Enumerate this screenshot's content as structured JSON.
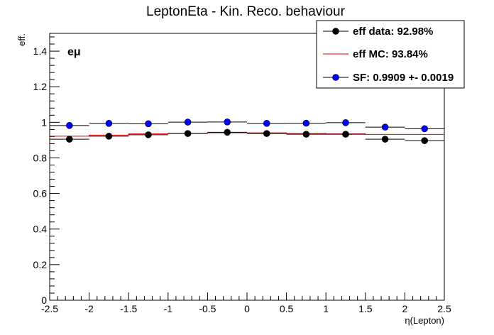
{
  "chart_data": {
    "type": "scatter",
    "title": "LeptonEta - Kin. Reco. behaviour",
    "xlabel": "η(Lepton)",
    "ylabel": "eff.",
    "xlim": [
      -2.5,
      2.5
    ],
    "ylim": [
      0,
      1.5
    ],
    "x_ticks": [
      -2.5,
      -2,
      -1.5,
      -1,
      -0.5,
      0,
      0.5,
      1,
      1.5,
      2,
      2.5
    ],
    "x_tick_labels": [
      "-2.5",
      "-2",
      "-1.5",
      "-1",
      "-0.5",
      "0",
      "0.5",
      "1",
      "1.5",
      "2",
      "2.5"
    ],
    "y_ticks": [
      0,
      0.2,
      0.4,
      0.6,
      0.8,
      1,
      1.2,
      1.4
    ],
    "y_tick_labels": [
      "0",
      "0.2",
      "0.4",
      "0.6",
      "0.8",
      "1",
      "1.2",
      "1.4"
    ],
    "annotation": "eμ",
    "grid": false,
    "legend_position": "top-right",
    "bin_edges": [
      -2.5,
      -2,
      -1.5,
      -1,
      -0.5,
      0,
      0.5,
      1,
      1.5,
      2,
      2.5
    ],
    "x": [
      -2.25,
      -1.75,
      -1.25,
      -0.75,
      -0.25,
      0.25,
      0.75,
      1.25,
      1.75,
      2.25
    ],
    "series": [
      {
        "name": "eff data: 92.98%",
        "style": "points",
        "color": "#000000",
        "values": [
          0.905,
          0.922,
          0.93,
          0.937,
          0.944,
          0.937,
          0.933,
          0.933,
          0.905,
          0.897
        ]
      },
      {
        "name": "eff MC: 93.84%",
        "style": "step",
        "color": "#e00000",
        "values": [
          0.922,
          0.928,
          0.935,
          0.938,
          0.941,
          0.941,
          0.937,
          0.935,
          0.932,
          0.932
        ]
      },
      {
        "name": "SF: 0.9909 +- 0.0019",
        "style": "points",
        "color": "#0000ff",
        "values": [
          0.982,
          0.994,
          0.992,
          1.001,
          1.002,
          0.994,
          0.995,
          0.998,
          0.973,
          0.964
        ]
      }
    ]
  }
}
